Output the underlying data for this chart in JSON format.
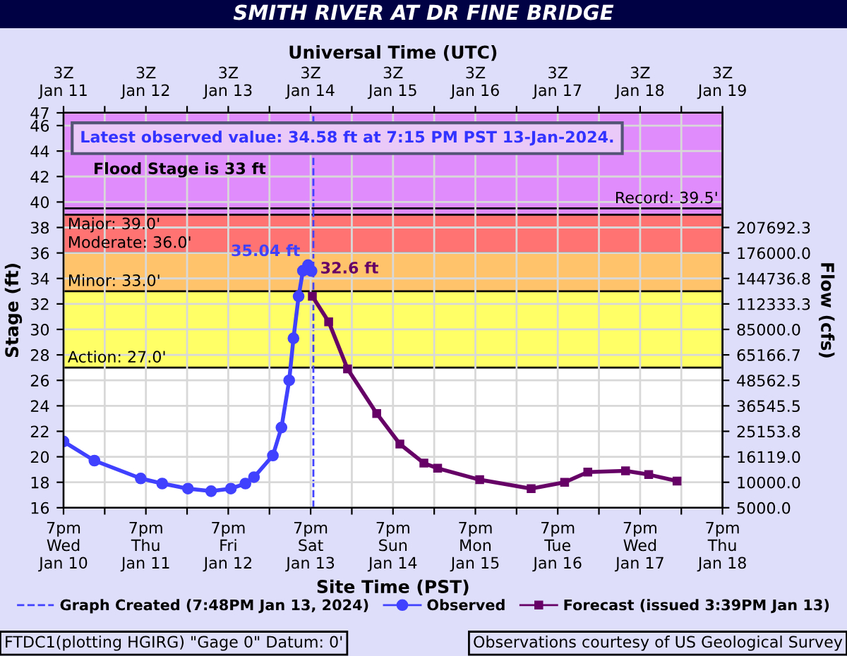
{
  "chart_data": {
    "type": "line",
    "title": "SMITH RIVER AT DR FINE BRIDGE",
    "xlabel": "Site Time (PST)",
    "x2label": "Universal Time (UTC)",
    "ylabel": "Stage (ft)",
    "y2label": "Flow (cfs)",
    "series": [
      {
        "name": "Observed",
        "color": "#4040ff",
        "marker": "circle",
        "x": [
          "2024-01-10T19:00",
          "2024-01-11T04:00",
          "2024-01-11T17:30",
          "2024-01-11T23:45",
          "2024-01-12T07:15",
          "2024-01-12T14:00",
          "2024-01-12T19:45",
          "2024-01-13T00:00",
          "2024-01-13T02:30",
          "2024-01-13T08:00",
          "2024-01-13T10:30",
          "2024-01-13T12:45",
          "2024-01-13T14:00",
          "2024-01-13T15:30",
          "2024-01-13T16:45",
          "2024-01-13T18:15",
          "2024-01-13T19:15"
        ],
        "values": [
          21.2,
          19.7,
          18.3,
          17.9,
          17.5,
          17.3,
          17.5,
          17.9,
          18.4,
          20.1,
          22.3,
          26.0,
          29.3,
          32.6,
          34.6,
          35.04,
          34.58
        ]
      },
      {
        "name": "Forecast (issued 3:39PM Jan 13)",
        "color": "#660066",
        "marker": "square",
        "x": [
          "2024-01-13T19:30",
          "2024-01-14T00:15",
          "2024-01-14T05:45",
          "2024-01-14T14:15",
          "2024-01-14T21:00",
          "2024-01-15T04:00",
          "2024-01-15T08:00",
          "2024-01-15T20:15",
          "2024-01-16T11:15",
          "2024-01-16T21:00",
          "2024-01-17T03:45",
          "2024-01-17T14:45",
          "2024-01-17T21:30",
          "2024-01-18T05:45"
        ],
        "values": [
          32.6,
          30.6,
          26.9,
          23.4,
          21.0,
          19.5,
          19.1,
          18.2,
          17.5,
          18.0,
          18.8,
          18.9,
          18.6,
          18.1
        ]
      }
    ],
    "xlim": [
      "2024-01-10T19:00",
      "2024-01-18T19:00"
    ],
    "xticks": [
      {
        "value": "2024-01-10T19:00",
        "label": "7pm\nWed\nJan 10"
      },
      {
        "value": "2024-01-11T07:00",
        "label": null
      },
      {
        "value": "2024-01-11T19:00",
        "label": "7pm\nThu\nJan 11"
      },
      {
        "value": "2024-01-12T07:00",
        "label": null
      },
      {
        "value": "2024-01-12T19:00",
        "label": "7pm\nFri\nJan 12"
      },
      {
        "value": "2024-01-13T07:00",
        "label": null
      },
      {
        "value": "2024-01-13T19:00",
        "label": "7pm\nSat\nJan 13"
      },
      {
        "value": "2024-01-14T07:00",
        "label": null
      },
      {
        "value": "2024-01-14T19:00",
        "label": "7pm\nSun\nJan 14"
      },
      {
        "value": "2024-01-15T07:00",
        "label": null
      },
      {
        "value": "2024-01-15T19:00",
        "label": "7pm\nMon\nJan 15"
      },
      {
        "value": "2024-01-16T07:00",
        "label": null
      },
      {
        "value": "2024-01-16T19:00",
        "label": "7pm\nTue\nJan 16"
      },
      {
        "value": "2024-01-17T07:00",
        "label": null
      },
      {
        "value": "2024-01-17T19:00",
        "label": "7pm\nWed\nJan 17"
      },
      {
        "value": "2024-01-18T07:00",
        "label": null
      },
      {
        "value": "2024-01-18T19:00",
        "label": "7pm\nThu\nJan 18"
      }
    ],
    "x2lim": [
      "2024-01-10T19:00",
      "2024-01-18T19:00"
    ],
    "x2ticks": [
      {
        "value": "2024-01-10T19:00",
        "label": "3Z\nJan 11"
      },
      {
        "value": "2024-01-11T07:00",
        "label": null
      },
      {
        "value": "2024-01-11T19:00",
        "label": "3Z\nJan 12"
      },
      {
        "value": "2024-01-12T07:00",
        "label": null
      },
      {
        "value": "2024-01-12T19:00",
        "label": "3Z\nJan 13"
      },
      {
        "value": "2024-01-13T07:00",
        "label": null
      },
      {
        "value": "2024-01-13T19:00",
        "label": "3Z\nJan 14"
      },
      {
        "value": "2024-01-14T07:00",
        "label": null
      },
      {
        "value": "2024-01-14T19:00",
        "label": "3Z\nJan 15"
      },
      {
        "value": "2024-01-15T07:00",
        "label": null
      },
      {
        "value": "2024-01-15T19:00",
        "label": "3Z\nJan 16"
      },
      {
        "value": "2024-01-16T07:00",
        "label": null
      },
      {
        "value": "2024-01-16T19:00",
        "label": "3Z\nJan 17"
      },
      {
        "value": "2024-01-17T07:00",
        "label": null
      },
      {
        "value": "2024-01-17T19:00",
        "label": "3Z\nJan 18"
      },
      {
        "value": "2024-01-18T07:00",
        "label": null
      },
      {
        "value": "2024-01-18T19:00",
        "label": "3Z\nJan 19"
      }
    ],
    "ylim": [
      16,
      47
    ],
    "yticks": [
      16,
      18,
      20,
      22,
      24,
      26,
      28,
      30,
      32,
      34,
      36,
      38,
      40,
      42,
      44,
      46,
      47
    ],
    "y2_categories": [
      "207692.3",
      "176000.0",
      "144736.8",
      "112333.3",
      "85000.0",
      "65166.7",
      "48562.5",
      "36545.5",
      "25153.8",
      "16119.0",
      "10000.0",
      "5000.0"
    ],
    "bands": [
      {
        "axis": "y",
        "from": 27,
        "to": 33,
        "color": "#ffff66"
      },
      {
        "axis": "y",
        "from": 33,
        "to": 36,
        "color": "#ffc36c"
      },
      {
        "axis": "y",
        "from": 36,
        "to": 39,
        "color": "#ff7373"
      },
      {
        "axis": "y",
        "from": 39,
        "to": 47,
        "color": "#e08cfc"
      }
    ],
    "ref_lines": [
      {
        "axis": "y",
        "value": 27,
        "label": "Action: 27.0'",
        "color": "#000000"
      },
      {
        "axis": "y",
        "value": 33,
        "label": "Minor: 33.0'",
        "color": "#000000"
      },
      {
        "axis": "y",
        "value": 36,
        "label": "Moderate: 36.0'",
        "color": "#000000"
      },
      {
        "axis": "y",
        "value": 39,
        "label": "Major: 39.0'",
        "color": "#000000"
      },
      {
        "axis": "y",
        "value": 39.5,
        "label": "Record: 39.5'",
        "color": "#000000"
      },
      {
        "axis": "x",
        "value": "2024-01-13T19:48",
        "label": "Graph Created (7:48PM Jan 13, 2024)",
        "color": "#4040ff",
        "line_style": "dashed"
      }
    ],
    "annotations": [
      {
        "text": "35.04 ft",
        "x": "2024-01-13T18:15",
        "y": 35.04
      },
      {
        "text": "32.6 ft",
        "x": "2024-01-13T19:30",
        "y": 32.6
      },
      "Latest observed value: 34.58 ft at 7:15 PM PST 13-Jan-2024.",
      "Flood Stage is 33 ft",
      "FTDC1(plotting HGIRG) \"Gage 0\" Datum: 0'",
      "Observations courtesy of US Geological Survey"
    ],
    "grid": true,
    "legend": "bottom",
    "line_style": "solid"
  }
}
